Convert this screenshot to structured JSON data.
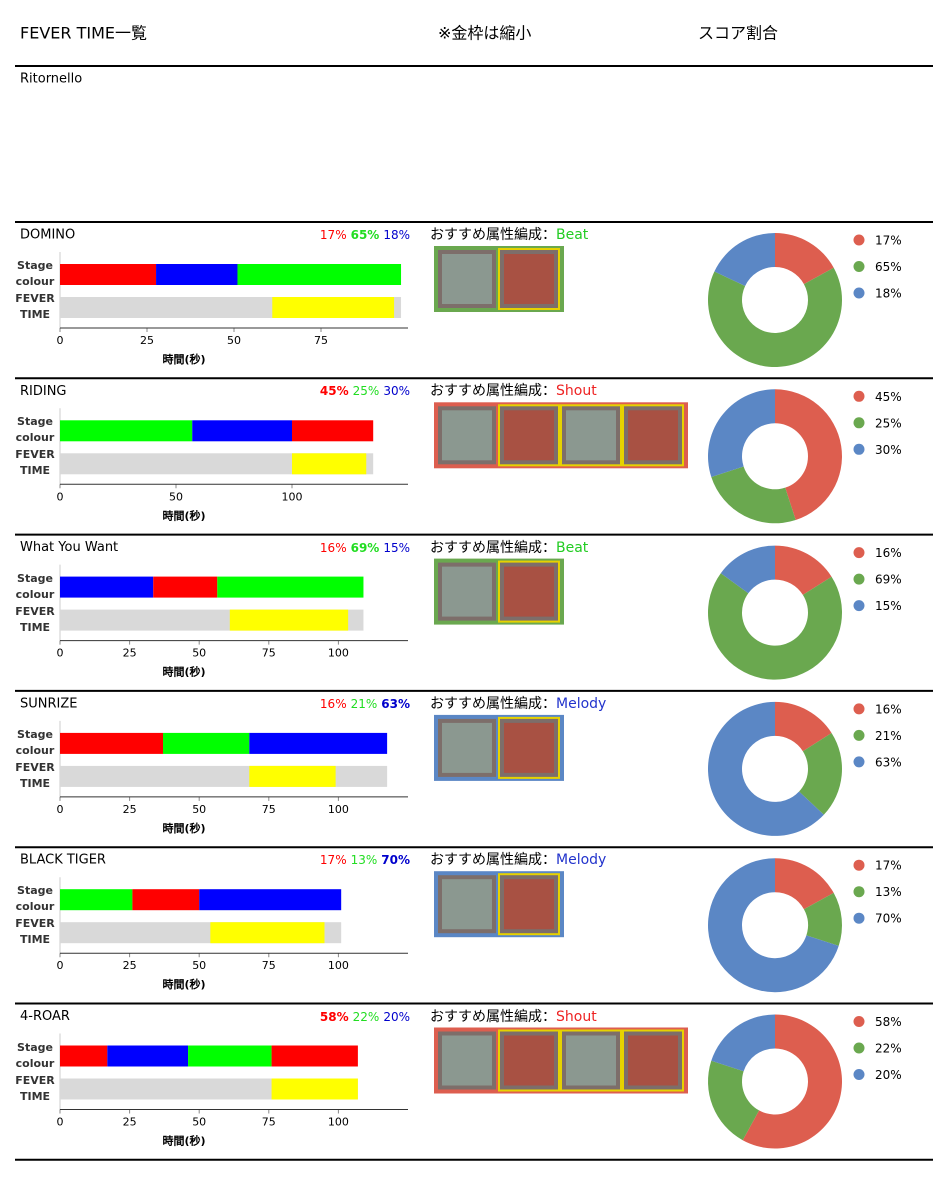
{
  "header": {
    "title": "FEVER TIME一覧",
    "note": "※金枠は縮小",
    "score_title": "スコア割合"
  },
  "unlisted_song": "Ritornello",
  "labels": {
    "stage": "Stage colour",
    "fever": "FEVER TIME",
    "axis": "時間(秒)",
    "recommend": "おすすめ属性編成："
  },
  "percent_colors": [
    "#ff0000",
    "#22dd22",
    "#0000cc"
  ],
  "donut_colors": [
    "#dd5e4f",
    "#6aa84f",
    "#5b87c5"
  ],
  "fever_color": "#ffff00",
  "track_color": "#d9d9d9",
  "card_fill": "#7d6e6a",
  "songs": [
    {
      "name": "DOMINO",
      "values": [
        17,
        65,
        18
      ],
      "value_labels": [
        "17%",
        "65%",
        "18%"
      ],
      "bold_index": 1,
      "xlim": [
        0,
        100
      ],
      "xticks": [
        0,
        25,
        50,
        75
      ],
      "stage": [
        {
          "color": "#ff0000",
          "start": 0,
          "end": 27.6
        },
        {
          "color": "#0000ff",
          "start": 27.6,
          "end": 51
        },
        {
          "color": "#00ff00",
          "start": 51,
          "end": 98
        }
      ],
      "fever": {
        "start": 61,
        "end": 96
      },
      "attribute": "Beat",
      "attribute_color": "#22cc22",
      "team_frame": "#6aa84f",
      "card_borders": [
        "#6aa84f",
        "#e6d200"
      ]
    },
    {
      "name": "RIDING",
      "values": [
        45,
        25,
        30
      ],
      "value_labels": [
        "45%",
        "25%",
        "30%"
      ],
      "bold_index": 0,
      "xlim": [
        0,
        150
      ],
      "xticks": [
        0,
        50,
        100
      ],
      "stage": [
        {
          "color": "#00ff00",
          "start": 0,
          "end": 57
        },
        {
          "color": "#0000ff",
          "start": 57,
          "end": 100
        },
        {
          "color": "#ff0000",
          "start": 100,
          "end": 135
        }
      ],
      "fever": {
        "start": 100,
        "end": 132
      },
      "attribute": "Shout",
      "attribute_color": "#ee2222",
      "team_frame": "#dd5e4f",
      "card_borders": [
        "#dd5e4f",
        "#e6d200",
        "#e6d200",
        "#e6d200"
      ]
    },
    {
      "name": "What You Want",
      "values": [
        16,
        69,
        15
      ],
      "value_labels": [
        "16%",
        "69%",
        "15%"
      ],
      "bold_index": 1,
      "xlim": [
        0,
        125
      ],
      "xticks": [
        0,
        25,
        50,
        75,
        100
      ],
      "stage": [
        {
          "color": "#0000ff",
          "start": 0,
          "end": 33.5
        },
        {
          "color": "#ff0000",
          "start": 33.5,
          "end": 56.5
        },
        {
          "color": "#00ff00",
          "start": 56.5,
          "end": 109
        }
      ],
      "fever": {
        "start": 61,
        "end": 103.5
      },
      "attribute": "Beat",
      "attribute_color": "#22cc22",
      "team_frame": "#6aa84f",
      "card_borders": [
        "#6aa84f",
        "#e6d200"
      ]
    },
    {
      "name": "SUNRIZE",
      "values": [
        16,
        21,
        63
      ],
      "value_labels": [
        "16%",
        "21%",
        "63%"
      ],
      "bold_index": 2,
      "xlim": [
        0,
        125
      ],
      "xticks": [
        0,
        25,
        50,
        75,
        100
      ],
      "stage": [
        {
          "color": "#ff0000",
          "start": 0,
          "end": 37
        },
        {
          "color": "#00ff00",
          "start": 37,
          "end": 68
        },
        {
          "color": "#0000ff",
          "start": 68,
          "end": 117.5
        }
      ],
      "fever": {
        "start": 68,
        "end": 99
      },
      "attribute": "Melody",
      "attribute_color": "#2233cc",
      "team_frame": "#5b87c5",
      "card_borders": [
        "#5b87c5",
        "#e6d200"
      ]
    },
    {
      "name": "BLACK TIGER",
      "values": [
        17,
        13,
        70
      ],
      "value_labels": [
        "17%",
        "13%",
        "70%"
      ],
      "bold_index": 2,
      "xlim": [
        0,
        125
      ],
      "xticks": [
        0,
        25,
        50,
        75,
        100
      ],
      "stage": [
        {
          "color": "#00ff00",
          "start": 0,
          "end": 26
        },
        {
          "color": "#ff0000",
          "start": 26,
          "end": 50
        },
        {
          "color": "#0000ff",
          "start": 50,
          "end": 101
        }
      ],
      "fever": {
        "start": 54,
        "end": 95
      },
      "attribute": "Melody",
      "attribute_color": "#2233cc",
      "team_frame": "#5b87c5",
      "card_borders": [
        "#5b87c5",
        "#e6d200"
      ]
    },
    {
      "name": "4-ROAR",
      "values": [
        58,
        22,
        20
      ],
      "value_labels": [
        "58%",
        "22%",
        "20%"
      ],
      "bold_index": 0,
      "xlim": [
        0,
        125
      ],
      "xticks": [
        0,
        25,
        50,
        75,
        100
      ],
      "stage": [
        {
          "color": "#ff0000",
          "start": 0,
          "end": 17
        },
        {
          "color": "#0000ff",
          "start": 17,
          "end": 46
        },
        {
          "color": "#00ff00",
          "start": 46,
          "end": 76
        },
        {
          "color": "#ff0000",
          "start": 76,
          "end": 107
        }
      ],
      "fever": {
        "start": 76,
        "end": 107
      },
      "attribute": "Shout",
      "attribute_color": "#ee2222",
      "team_frame": "#dd5e4f",
      "card_borders": [
        "#dd5e4f",
        "#e6d200",
        "#e6d200",
        "#e6d200"
      ]
    }
  ]
}
